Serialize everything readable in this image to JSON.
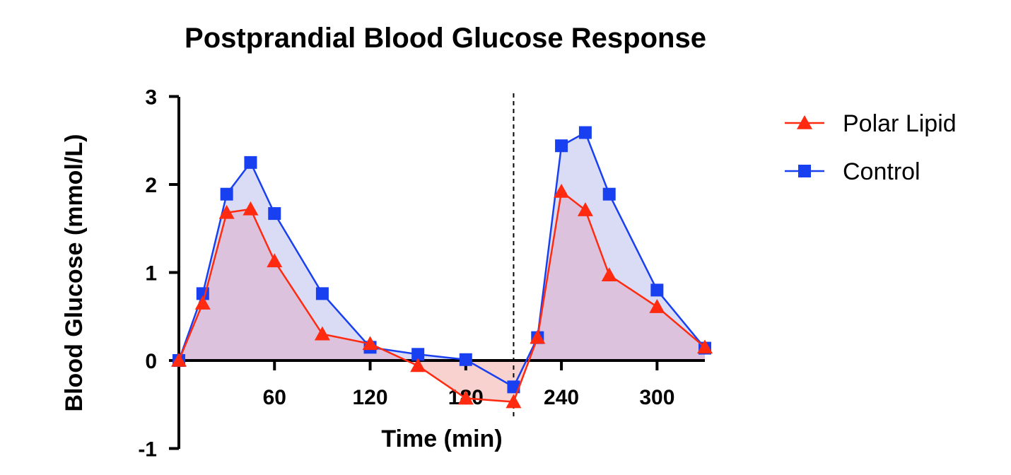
{
  "chart_data": {
    "type": "line",
    "title": "Postprandial Blood Glucose Response",
    "xlabel": "Time (min)",
    "ylabel": "Blood Glucose (mmol/L)",
    "xlim": [
      0,
      330
    ],
    "ylim": [
      -1,
      3
    ],
    "x_ticks": [
      60,
      120,
      180,
      240,
      300
    ],
    "y_ticks": [
      -1,
      0,
      1,
      2,
      3
    ],
    "vline_x": 210,
    "grid": false,
    "legend_position": "top-right",
    "series": [
      {
        "name": "Polar Lipid",
        "marker": "triangle",
        "color": "#ff2a10",
        "fill": "#dcc2dc",
        "points": [
          [
            0,
            0
          ],
          [
            15,
            0.65
          ],
          [
            30,
            1.68
          ],
          [
            45,
            1.72
          ],
          [
            60,
            1.13
          ],
          [
            90,
            0.3
          ],
          [
            120,
            0.19
          ],
          [
            150,
            -0.06
          ],
          [
            180,
            -0.43
          ],
          [
            210,
            -0.47
          ],
          [
            225,
            0.26
          ],
          [
            240,
            1.92
          ],
          [
            255,
            1.71
          ],
          [
            270,
            0.97
          ],
          [
            300,
            0.61
          ],
          [
            330,
            0.15
          ]
        ]
      },
      {
        "name": "Control",
        "marker": "square",
        "color": "#1840f0",
        "fill": "#dadcf6",
        "points": [
          [
            0,
            0
          ],
          [
            15,
            0.76
          ],
          [
            30,
            1.89
          ],
          [
            45,
            2.25
          ],
          [
            60,
            1.67
          ],
          [
            90,
            0.76
          ],
          [
            120,
            0.15
          ],
          [
            150,
            0.07
          ],
          [
            180,
            0.01
          ],
          [
            210,
            -0.3
          ],
          [
            225,
            0.26
          ],
          [
            240,
            2.44
          ],
          [
            255,
            2.59
          ],
          [
            270,
            1.89
          ],
          [
            300,
            0.8
          ],
          [
            330,
            0.14
          ]
        ]
      }
    ],
    "below_zero_fill": "#f8d2cf"
  }
}
